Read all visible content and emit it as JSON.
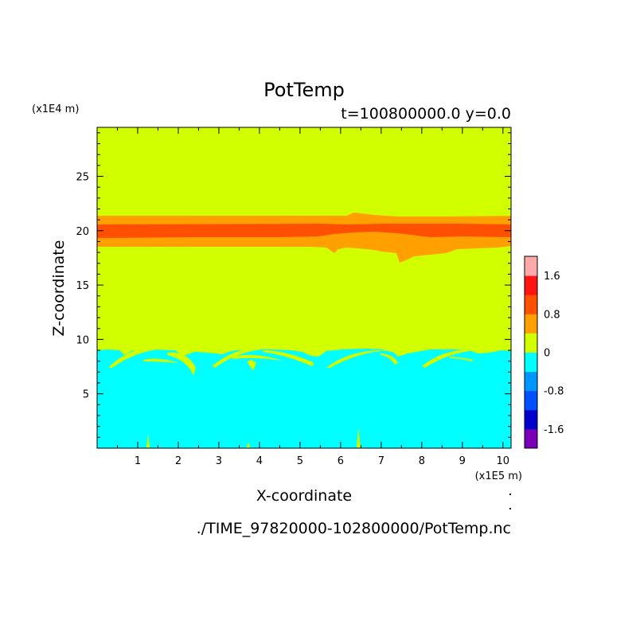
{
  "chart_data": {
    "type": "heatmap",
    "title": "PotTemp",
    "subtitle": "t=100800000.0 y=0.0",
    "xlabel": "X-coordinate",
    "ylabel": "Z-coordinate",
    "x_units": "(x1E5 m)",
    "y_units": "(x1E4 m)",
    "xlim": [
      0,
      10.2
    ],
    "ylim": [
      0,
      29.5
    ],
    "x_ticks": [
      "1",
      "2",
      "3",
      "4",
      "5",
      "6",
      "7",
      "8",
      "9",
      "10"
    ],
    "y_ticks": [
      "5",
      "10",
      "15",
      "20",
      "25"
    ],
    "source_file": "./TIME_97820000-102800000/PotTemp.nc",
    "colorbar": {
      "levels": [
        {
          "color": "#7a00b8"
        },
        {
          "color": "#0000cc"
        },
        {
          "color": "#0050ff"
        },
        {
          "color": "#0096ff"
        },
        {
          "color": "#00ffff"
        },
        {
          "color": "#d2ff00"
        },
        {
          "color": "#ffa000"
        },
        {
          "color": "#ff5000"
        },
        {
          "color": "#ff1414"
        },
        {
          "color": "#ffaaaa"
        }
      ],
      "tick_labels": [
        {
          "label": "1.6",
          "value": 1.6
        },
        {
          "label": "0.8",
          "value": 0.8
        },
        {
          "label": "0",
          "value": 0
        },
        {
          "label": "-0.8",
          "value": -0.8
        },
        {
          "label": "-1.6",
          "value": -1.6
        }
      ],
      "vmin": -2.0,
      "vmax": 2.0
    },
    "field_regions": [
      {
        "name": "background",
        "value_class": "0 to 0.4",
        "color": "#d2ff00",
        "z_range": [
          0,
          29.5
        ]
      },
      {
        "name": "lower-layer",
        "value_class": "-0.4 to 0",
        "color": "#00ffff",
        "z_range": [
          0,
          9.3
        ]
      },
      {
        "name": "upper-band-outer",
        "value_class": "0.4 to 0.8",
        "color": "#ffa000",
        "z_range": [
          18.8,
          21.8
        ]
      },
      {
        "name": "upper-band-core",
        "value_class": "0.8 to 1.2",
        "color": "#ff5000",
        "z_range": [
          19.6,
          21.0
        ]
      }
    ]
  }
}
